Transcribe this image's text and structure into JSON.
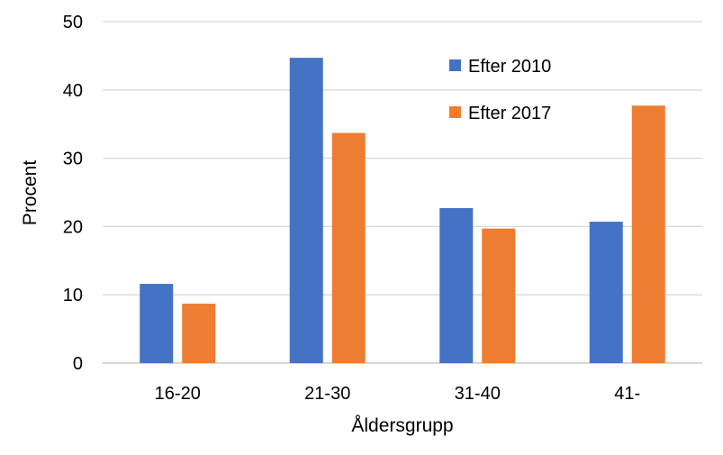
{
  "chart_data": {
    "type": "bar",
    "categories": [
      "16-20",
      "21-30",
      "31-40",
      "41-"
    ],
    "series": [
      {
        "name": "Efter 2010",
        "color": "#4472C4",
        "values": [
          11.6,
          44.7,
          22.7,
          20.7
        ]
      },
      {
        "name": "Efter 2017",
        "color": "#ED7D31",
        "values": [
          8.7,
          33.7,
          19.7,
          37.7
        ]
      }
    ],
    "xlabel": "Åldersgrupp",
    "ylabel": "Procent",
    "ylim": [
      0,
      50
    ],
    "yticks": [
      "0",
      "10",
      "20",
      "30",
      "40",
      "50"
    ],
    "grid": true,
    "legend_position": "top-right"
  }
}
